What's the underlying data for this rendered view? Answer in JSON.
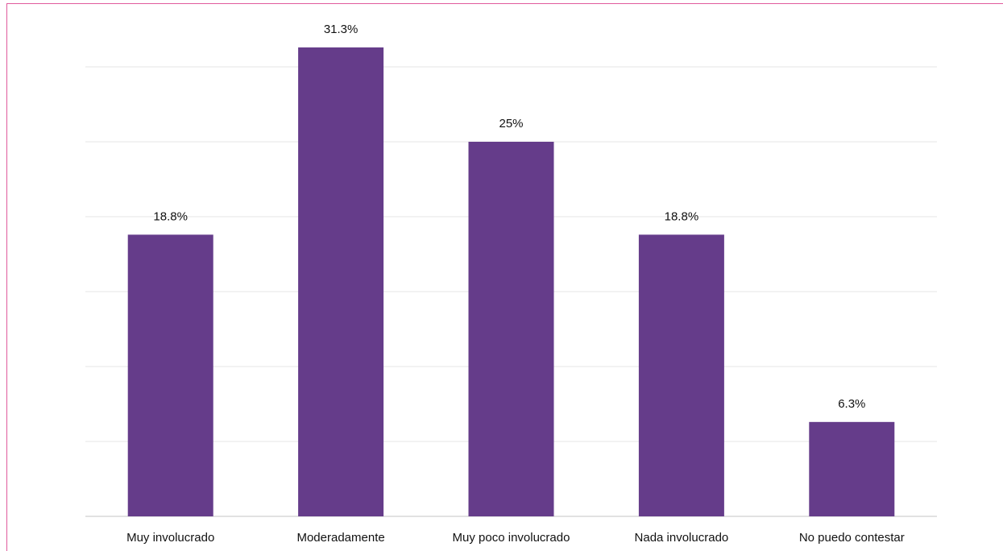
{
  "chart_data": {
    "type": "bar",
    "categories": [
      "Muy involucrado",
      "Moderadamente",
      "Muy poco involucrado",
      "Nada involucrado",
      "No puedo contestar"
    ],
    "values": [
      18.8,
      31.3,
      25,
      18.8,
      6.3
    ],
    "value_labels": [
      "18.8%",
      "31.3%",
      "25%",
      "18.8%",
      "6.3%"
    ],
    "title": "",
    "xlabel": "",
    "ylabel": "",
    "ylim": [
      0,
      35
    ],
    "grid": true,
    "colors": {
      "bar": "#653c8a",
      "grid": "#e6e6e6",
      "border": "#e05a9c"
    }
  }
}
